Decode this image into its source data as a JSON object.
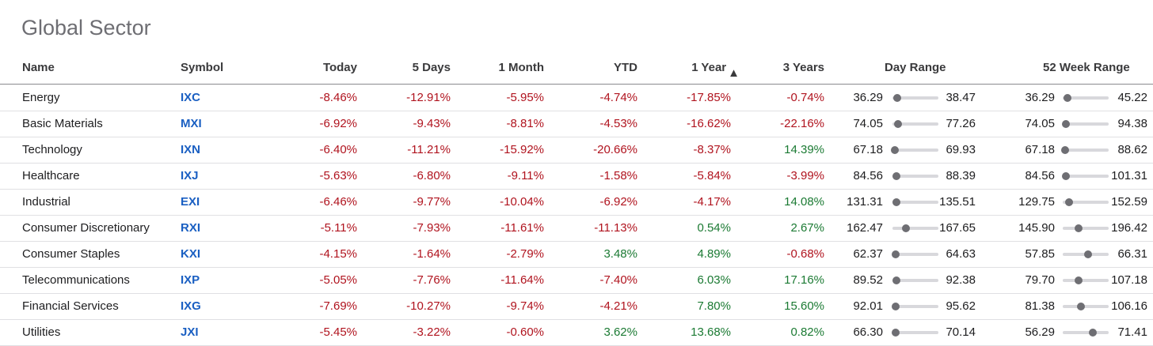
{
  "title": "Global Sector",
  "headers": {
    "name": "Name",
    "symbol": "Symbol",
    "today": "Today",
    "five_days": "5 Days",
    "one_month": "1 Month",
    "ytd": "YTD",
    "one_year": "1 Year",
    "three_years": "3 Years",
    "day_range": "Day Range",
    "week52_range": "52 Week Range"
  },
  "sort_icon": "▲",
  "colors": {
    "negative": "#b0131e",
    "positive": "#1b7a33",
    "symbol": "#1a5fc2"
  },
  "rows": [
    {
      "name": "Energy",
      "symbol": "IXC",
      "today": "-8.46%",
      "d5": "-12.91%",
      "m1": "-5.95%",
      "ytd": "-4.74%",
      "y1": "-17.85%",
      "y3": "-0.74%",
      "day_lo": "36.29",
      "day_hi": "38.47",
      "day_pos": 0.1,
      "wk_lo": "36.29",
      "wk_hi": "45.22",
      "wk_pos": 0.1
    },
    {
      "name": "Basic Materials",
      "symbol": "MXI",
      "today": "-6.92%",
      "d5": "-9.43%",
      "m1": "-8.81%",
      "ytd": "-4.53%",
      "y1": "-16.62%",
      "y3": "-22.16%",
      "day_lo": "74.05",
      "day_hi": "77.26",
      "day_pos": 0.12,
      "wk_lo": "74.05",
      "wk_hi": "94.38",
      "wk_pos": 0.07
    },
    {
      "name": "Technology",
      "symbol": "IXN",
      "today": "-6.40%",
      "d5": "-11.21%",
      "m1": "-15.92%",
      "ytd": "-20.66%",
      "y1": "-8.37%",
      "y3": "14.39%",
      "day_lo": "67.18",
      "day_hi": "69.93",
      "day_pos": 0.05,
      "wk_lo": "67.18",
      "wk_hi": "88.62",
      "wk_pos": 0.05
    },
    {
      "name": "Healthcare",
      "symbol": "IXJ",
      "today": "-5.63%",
      "d5": "-6.80%",
      "m1": "-9.11%",
      "ytd": "-1.58%",
      "y1": "-5.84%",
      "y3": "-3.99%",
      "day_lo": "84.56",
      "day_hi": "88.39",
      "day_pos": 0.08,
      "wk_lo": "84.56",
      "wk_hi": "101.31",
      "wk_pos": 0.07
    },
    {
      "name": "Industrial",
      "symbol": "EXI",
      "today": "-6.46%",
      "d5": "-9.77%",
      "m1": "-10.04%",
      "ytd": "-6.92%",
      "y1": "-4.17%",
      "y3": "14.08%",
      "day_lo": "131.31",
      "day_hi": "135.51",
      "day_pos": 0.08,
      "wk_lo": "129.75",
      "wk_hi": "152.59",
      "wk_pos": 0.13
    },
    {
      "name": "Consumer Discretionary",
      "symbol": "RXI",
      "today": "-5.11%",
      "d5": "-7.93%",
      "m1": "-11.61%",
      "ytd": "-11.13%",
      "y1": "0.54%",
      "y3": "2.67%",
      "day_lo": "162.47",
      "day_hi": "167.65",
      "day_pos": 0.3,
      "wk_lo": "145.90",
      "wk_hi": "196.42",
      "wk_pos": 0.35
    },
    {
      "name": "Consumer Staples",
      "symbol": "KXI",
      "today": "-4.15%",
      "d5": "-1.64%",
      "m1": "-2.79%",
      "ytd": "3.48%",
      "y1": "4.89%",
      "y3": "-0.68%",
      "day_lo": "62.37",
      "day_hi": "64.63",
      "day_pos": 0.07,
      "wk_lo": "57.85",
      "wk_hi": "66.31",
      "wk_pos": 0.55
    },
    {
      "name": "Telecommunications",
      "symbol": "IXP",
      "today": "-5.05%",
      "d5": "-7.76%",
      "m1": "-11.64%",
      "ytd": "-7.40%",
      "y1": "6.03%",
      "y3": "17.16%",
      "day_lo": "89.52",
      "day_hi": "92.38",
      "day_pos": 0.08,
      "wk_lo": "79.70",
      "wk_hi": "107.18",
      "wk_pos": 0.35
    },
    {
      "name": "Financial Services",
      "symbol": "IXG",
      "today": "-7.69%",
      "d5": "-10.27%",
      "m1": "-9.74%",
      "ytd": "-4.21%",
      "y1": "7.80%",
      "y3": "15.60%",
      "day_lo": "92.01",
      "day_hi": "95.62",
      "day_pos": 0.07,
      "wk_lo": "81.38",
      "wk_hi": "106.16",
      "wk_pos": 0.4
    },
    {
      "name": "Utilities",
      "symbol": "JXI",
      "today": "-5.45%",
      "d5": "-3.22%",
      "m1": "-0.60%",
      "ytd": "3.62%",
      "y1": "13.68%",
      "y3": "0.82%",
      "day_lo": "66.30",
      "day_hi": "70.14",
      "day_pos": 0.07,
      "wk_lo": "56.29",
      "wk_hi": "71.41",
      "wk_pos": 0.65
    }
  ]
}
